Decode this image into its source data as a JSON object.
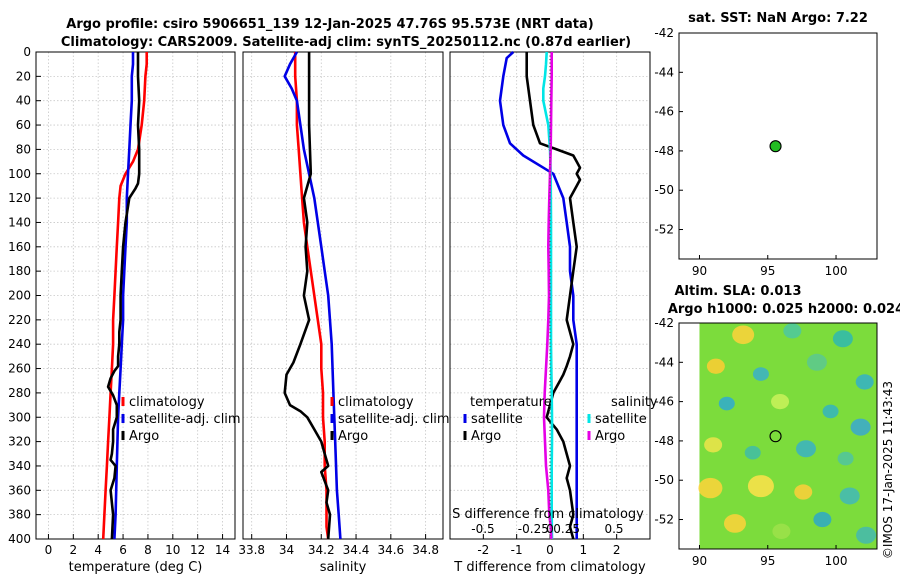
{
  "figure": {
    "title_line1": "Argo profile: csiro 5906651_139 12-Jan-2025 47.76S 95.573E (NRT data)",
    "title_line2": "Climatology: CARS2009. Satellite-adj clim: synTS_20250112.nc (0.87d earlier)",
    "side_stamp": "©IMOS 17-Jan-2025 11:43:43",
    "colors": {
      "climatology": "#ff0000",
      "satellite": "#0000e6",
      "argo": "#000000",
      "sal_satellite": "#00e6e6",
      "sal_argo": "#e600e6",
      "marker": "#22bb22"
    }
  },
  "chart_data": [
    {
      "id": "temperature",
      "type": "line",
      "xlabel": "temperature (deg C)",
      "xlim": [
        -1,
        15
      ],
      "xticks": [
        0,
        2,
        4,
        6,
        8,
        10,
        12,
        14
      ],
      "ylim": [
        0,
        400
      ],
      "yticks": [
        0,
        20,
        40,
        60,
        80,
        100,
        120,
        140,
        160,
        180,
        200,
        220,
        240,
        260,
        280,
        300,
        320,
        340,
        360,
        380,
        400
      ],
      "legend": [
        "climatology",
        "satellite-adj. clim",
        "Argo"
      ],
      "series": [
        {
          "name": "climatology",
          "x": [
            7.9,
            7.9,
            7.8,
            7.7,
            7.5,
            7.2,
            6.8,
            6.2,
            5.8,
            5.7,
            5.6,
            5.5,
            5.4,
            5.3,
            5.2,
            5.2,
            5.1,
            5.0,
            4.9,
            4.8,
            4.7,
            4.6,
            4.5,
            4.4
          ],
          "depth": [
            0,
            10,
            20,
            40,
            60,
            80,
            90,
            100,
            110,
            120,
            140,
            160,
            180,
            200,
            220,
            240,
            260,
            280,
            300,
            320,
            340,
            360,
            380,
            400
          ]
        },
        {
          "name": "satellite-adj. clim",
          "x": [
            6.8,
            6.8,
            6.7,
            6.7,
            6.6,
            6.5,
            6.4,
            6.3,
            6.3,
            6.2,
            6.1,
            6.0,
            6.0,
            5.9,
            5.8,
            5.7,
            5.6,
            5.5,
            5.4,
            5.3
          ],
          "depth": [
            0,
            10,
            20,
            40,
            60,
            80,
            100,
            120,
            140,
            160,
            180,
            200,
            220,
            240,
            260,
            280,
            300,
            340,
            380,
            400
          ]
        },
        {
          "name": "Argo",
          "x": [
            7.2,
            7.2,
            7.3,
            7.2,
            7.3,
            7.3,
            7.3,
            7.2,
            7.0,
            6.5,
            6.2,
            6.0,
            5.9,
            5.8,
            5.8,
            5.7,
            5.7,
            5.6,
            5.6,
            5.3,
            5.0,
            4.8,
            5.2,
            5.5,
            5.5,
            5.2,
            5.2,
            5.1,
            5.0,
            5.4,
            5.3,
            5.0,
            5.2,
            5.1
          ],
          "depth": [
            0,
            20,
            40,
            60,
            80,
            90,
            100,
            108,
            112,
            120,
            140,
            160,
            180,
            200,
            220,
            230,
            240,
            250,
            258,
            262,
            268,
            275,
            282,
            290,
            300,
            310,
            320,
            330,
            335,
            340,
            350,
            360,
            380,
            400
          ]
        }
      ]
    },
    {
      "id": "salinity",
      "type": "line",
      "xlabel": "salinity",
      "xlim": [
        33.75,
        34.9
      ],
      "xticks": [
        33.8,
        34,
        34.2,
        34.4,
        34.6,
        34.8
      ],
      "xticklabels": [
        "33.8",
        "34",
        "34.2",
        "34.4",
        "34.6",
        "34.8"
      ],
      "ylim": [
        0,
        400
      ],
      "legend": [
        "climatology",
        "satellite-adj. clim",
        "Argo"
      ],
      "series": [
        {
          "name": "climatology",
          "x": [
            34.05,
            34.05,
            34.06,
            34.06,
            34.07,
            34.08,
            34.09,
            34.1,
            34.12,
            34.14,
            34.16,
            34.18,
            34.2,
            34.2,
            34.21,
            34.21,
            34.22,
            34.22,
            34.23,
            34.23,
            34.23,
            34.24
          ],
          "depth": [
            0,
            20,
            40,
            60,
            80,
            100,
            120,
            140,
            160,
            180,
            200,
            220,
            240,
            260,
            280,
            300,
            320,
            340,
            360,
            380,
            390,
            400
          ]
        },
        {
          "name": "satellite-adj. clim",
          "x": [
            34.06,
            34.02,
            33.99,
            34.03,
            34.06,
            34.08,
            34.1,
            34.13,
            34.16,
            34.18,
            34.2,
            34.22,
            34.24,
            34.26,
            34.27,
            34.28,
            34.29,
            34.3,
            34.31
          ],
          "depth": [
            0,
            10,
            20,
            30,
            40,
            60,
            80,
            100,
            120,
            140,
            160,
            180,
            200,
            240,
            280,
            320,
            360,
            380,
            400
          ]
        },
        {
          "name": "Argo",
          "x": [
            34.13,
            34.13,
            34.13,
            34.13,
            34.14,
            34.1,
            34.12,
            34.11,
            34.12,
            34.1,
            34.13,
            34.08,
            34.04,
            34.0,
            33.99,
            34.02,
            34.08,
            34.12,
            34.16,
            34.2,
            34.22,
            34.24,
            34.2,
            34.24,
            34.23,
            34.25,
            34.24
          ],
          "depth": [
            0,
            20,
            40,
            60,
            100,
            120,
            140,
            160,
            180,
            200,
            220,
            240,
            255,
            265,
            280,
            290,
            295,
            300,
            310,
            320,
            330,
            340,
            345,
            360,
            370,
            380,
            400
          ]
        }
      ]
    },
    {
      "id": "difference",
      "type": "line",
      "xlabel": "T difference from climatology",
      "xlabel_top": "S difference from climatology",
      "xlim": [
        -3,
        3
      ],
      "xticks": [
        -2,
        -1,
        0,
        1,
        2
      ],
      "xticks_top": [
        -1,
        -0.5,
        0,
        0.5,
        1
      ],
      "xticklabels_top": [
        "-0.5",
        "-0.25",
        "0",
        "0.25",
        "0.5"
      ],
      "ylim": [
        0,
        400
      ],
      "legend_temperature_title": "temperature",
      "legend_salinity_title": "salinity",
      "legend_temperature": [
        "satellite",
        "Argo"
      ],
      "legend_salinity": [
        "satellite",
        "Argo"
      ],
      "series": [
        {
          "name": "temperature satellite",
          "x": [
            -1.1,
            -1.3,
            -1.4,
            -1.5,
            -1.4,
            -1.2,
            -0.8,
            -0.2,
            0.1,
            0.4,
            0.5,
            0.6,
            0.6,
            0.7,
            0.7,
            0.8,
            0.8,
            0.8,
            0.8,
            0.8,
            0.8,
            0.8,
            0.8,
            0.8,
            0.8
          ],
          "depth": [
            0,
            5,
            20,
            40,
            60,
            75,
            85,
            95,
            100,
            120,
            140,
            160,
            180,
            200,
            220,
            240,
            260,
            280,
            300,
            320,
            340,
            360,
            380,
            390,
            400
          ]
        },
        {
          "name": "temperature Argo",
          "x": [
            -0.7,
            -0.7,
            -0.6,
            -0.5,
            -0.3,
            0.2,
            0.7,
            0.8,
            0.9,
            0.8,
            0.9,
            0.8,
            0.6,
            0.7,
            0.8,
            0.7,
            0.6,
            0.5,
            0.6,
            0.7,
            0.6,
            0.5,
            0.4,
            0.3,
            0.1,
            0.0,
            -0.1,
            0.2,
            0.4,
            0.6,
            0.5,
            0.6,
            0.7,
            0.6,
            0.7
          ],
          "depth": [
            0,
            20,
            40,
            60,
            75,
            80,
            85,
            90,
            95,
            100,
            105,
            110,
            120,
            140,
            160,
            180,
            200,
            220,
            230,
            240,
            250,
            258,
            265,
            270,
            280,
            290,
            300,
            310,
            320,
            340,
            350,
            360,
            380,
            390,
            400
          ]
        },
        {
          "name": "salinity satellite",
          "x": [
            -0.1,
            -0.12,
            -0.15,
            -0.2,
            -0.2,
            -0.05,
            0.0,
            0.02,
            0.03,
            0.03,
            0.03,
            0.03,
            0.03,
            0.04,
            0.05,
            0.06,
            0.06,
            0.05,
            0.05,
            0.05,
            0.06
          ],
          "depth": [
            0,
            10,
            20,
            30,
            40,
            60,
            80,
            100,
            140,
            180,
            200,
            220,
            240,
            260,
            280,
            300,
            320,
            340,
            360,
            380,
            400
          ]
        },
        {
          "name": "salinity Argo",
          "x": [
            0.05,
            0.05,
            0.04,
            0.03,
            0.02,
            0.0,
            -0.02,
            -0.04,
            -0.05,
            -0.04,
            -0.03,
            -0.05,
            -0.08,
            -0.12,
            -0.16,
            -0.18,
            -0.15,
            -0.12,
            -0.05,
            -0.02,
            0.02,
            0.04
          ],
          "depth": [
            0,
            20,
            40,
            60,
            80,
            100,
            120,
            140,
            160,
            180,
            200,
            220,
            240,
            260,
            280,
            300,
            320,
            340,
            360,
            380,
            390,
            400
          ]
        }
      ]
    },
    {
      "id": "sst-map",
      "type": "scatter",
      "title": "sat. SST: NaN Argo: 7.22",
      "xlim": [
        88.5,
        103
      ],
      "ylim": [
        -42,
        -53.5
      ],
      "xticks": [
        90,
        95,
        100
      ],
      "yticks": [
        -42,
        -44,
        -46,
        -48,
        -50,
        -52
      ],
      "point": {
        "x": 95.57,
        "y": -47.76
      }
    },
    {
      "id": "sla-map",
      "type": "heatmap",
      "title_line1": "Altim. SLA: 0.013",
      "title_line2": "Argo h1000: 0.025 h2000: 0.024",
      "xlim": [
        88.5,
        103
      ],
      "ylim": [
        -42,
        -53.5
      ],
      "xticks": [
        90,
        95,
        100
      ],
      "yticks": [
        -42,
        -44,
        -46,
        -48,
        -50,
        -52
      ],
      "point": {
        "x": 95.57,
        "y": -47.76
      }
    }
  ]
}
